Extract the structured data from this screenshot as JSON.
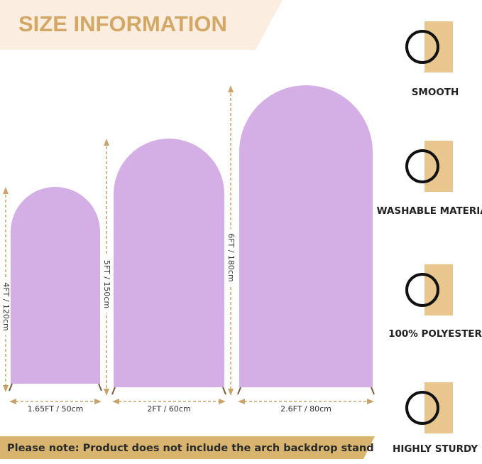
{
  "header": {
    "title": "SIZE INFORMATION"
  },
  "arches": [
    {
      "height": "4FT / 120cm",
      "width": "1.65FT / 50cm"
    },
    {
      "height": "5FT / 150cm",
      "width": "2FT / 60cm"
    },
    {
      "height": "6FT / 180cm",
      "width": "2.6FT / 80cm"
    }
  ],
  "features": [
    "SMOOTH",
    "WASHABLE MATERIAL",
    "100% POLYESTER",
    "HIGHLY STURDY"
  ],
  "note": "Please note: Product does not include the arch backdrop stand"
}
